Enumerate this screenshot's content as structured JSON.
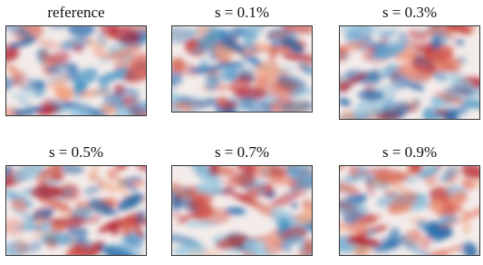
{
  "panels": [
    {
      "title": "reference"
    },
    {
      "title": "s = 0.1%"
    },
    {
      "title": "s = 0.3%"
    },
    {
      "title": "s = 0.5%"
    },
    {
      "title": "s = 0.7%"
    },
    {
      "title": "s = 0.9%"
    }
  ]
}
